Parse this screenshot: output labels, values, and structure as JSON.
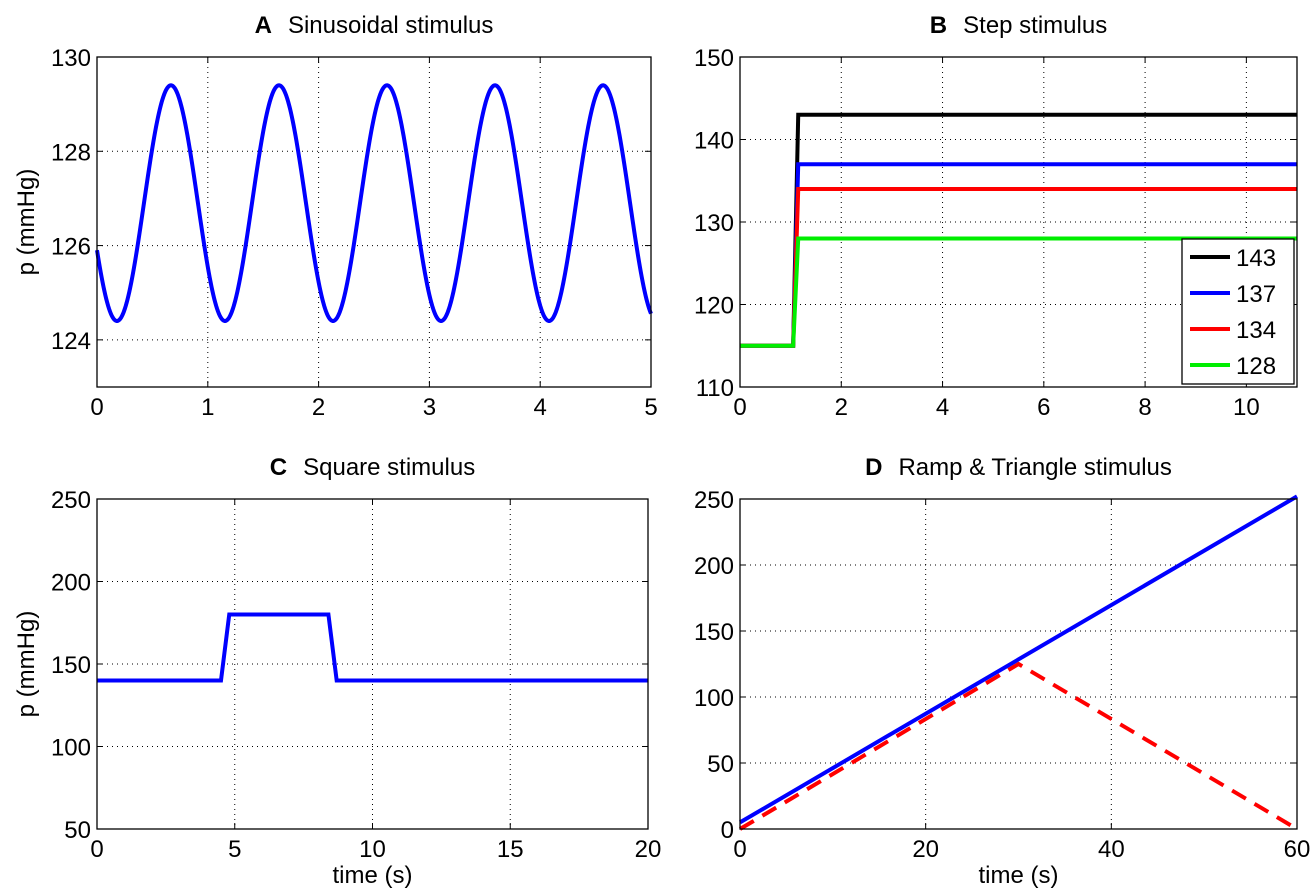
{
  "chart_data": [
    {
      "type": "line",
      "panel": "A",
      "title": "Sinusoidal stimulus",
      "xlabel": "",
      "ylabel": "p (mmHg)",
      "xlim": [
        0,
        5
      ],
      "ylim": [
        123,
        130
      ],
      "xticks": [
        0,
        1,
        2,
        3,
        4,
        5
      ],
      "yticks": [
        124,
        126,
        128,
        130
      ],
      "grid": true,
      "color": "#0000ff",
      "series": [
        {
          "function": "sine",
          "mean": 126.9,
          "amplitude": 2.5,
          "period_s": 0.975,
          "first_min_s": 0.18,
          "x_range": [
            0,
            5
          ]
        }
      ]
    },
    {
      "type": "line",
      "panel": "B",
      "title": "Step stimulus",
      "xlabel": "",
      "ylabel": "",
      "xlim": [
        0,
        11
      ],
      "ylim": [
        110,
        150
      ],
      "xticks": [
        0,
        2,
        4,
        6,
        8,
        10
      ],
      "yticks": [
        110,
        120,
        130,
        140,
        150
      ],
      "grid": true,
      "legend_position": "bottom-right",
      "step_time_s": 1.1,
      "baseline": 115,
      "series": [
        {
          "name": "143",
          "value": 143,
          "color": "#000000"
        },
        {
          "name": "137",
          "value": 137,
          "color": "#0000ff"
        },
        {
          "name": "134",
          "value": 134,
          "color": "#ff0000"
        },
        {
          "name": "128",
          "value": 128,
          "color": "#00ee00"
        }
      ]
    },
    {
      "type": "line",
      "panel": "C",
      "title": "Square stimulus",
      "xlabel": "time (s)",
      "ylabel": "p (mmHg)",
      "xlim": [
        0,
        20
      ],
      "ylim": [
        50,
        250
      ],
      "xticks": [
        0,
        5,
        10,
        15,
        20
      ],
      "yticks": [
        50,
        100,
        150,
        200,
        250
      ],
      "grid": true,
      "color": "#0000ff",
      "series": [
        {
          "x": [
            0,
            4.5,
            4.8,
            8.4,
            8.7,
            20
          ],
          "y": [
            140,
            140,
            180,
            180,
            140,
            140
          ]
        }
      ]
    },
    {
      "type": "line",
      "panel": "D",
      "title": "Ramp & Triangle stimulus",
      "xlabel": "time (s)",
      "ylabel": "",
      "xlim": [
        0,
        60
      ],
      "ylim": [
        0,
        250
      ],
      "xticks": [
        0,
        20,
        40,
        60
      ],
      "yticks": [
        0,
        50,
        100,
        150,
        200,
        250
      ],
      "grid": true,
      "series": [
        {
          "style": "dashed",
          "color": "#ff0000",
          "x": [
            0,
            30,
            60
          ],
          "y": [
            0,
            125,
            0
          ]
        },
        {
          "style": "solid",
          "color": "#0000ff",
          "x": [
            0,
            60
          ],
          "y": [
            5,
            252
          ]
        }
      ]
    }
  ]
}
